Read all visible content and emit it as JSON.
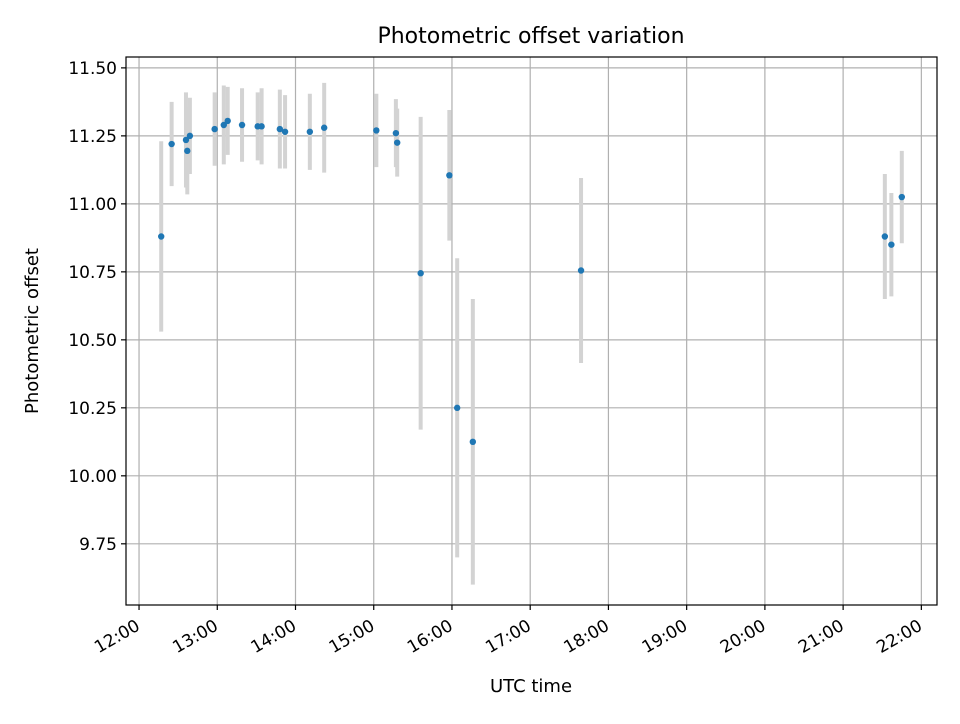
{
  "chart_data": {
    "type": "scatter",
    "title": "Photometric offset variation",
    "xlabel": "UTC time",
    "ylabel": "Photometric offset",
    "x_ticks": [
      "12:00",
      "13:00",
      "14:00",
      "15:00",
      "16:00",
      "17:00",
      "18:00",
      "19:00",
      "20:00",
      "21:00",
      "22:00"
    ],
    "y_ticks": [
      "9.75",
      "10.00",
      "10.25",
      "10.50",
      "10.75",
      "11.00",
      "11.25",
      "11.50"
    ],
    "xlim": [
      "11:50",
      "22:12"
    ],
    "ylim": [
      9.525,
      11.54
    ],
    "grid": true,
    "colors": {
      "point": "#1f77b4",
      "errorbar": "#d3d3d3",
      "grid": "#b0b0b0"
    },
    "points": [
      {
        "t": "12:17",
        "y": 10.88,
        "err": 0.35
      },
      {
        "t": "12:25",
        "y": 11.22,
        "err": 0.155
      },
      {
        "t": "12:36",
        "y": 11.235,
        "err": 0.175
      },
      {
        "t": "12:37",
        "y": 11.195,
        "err": 0.16
      },
      {
        "t": "12:39",
        "y": 11.25,
        "err": 0.14
      },
      {
        "t": "12:58",
        "y": 11.275,
        "err": 0.135
      },
      {
        "t": "13:05",
        "y": 11.29,
        "err": 0.145
      },
      {
        "t": "13:08",
        "y": 11.305,
        "err": 0.125
      },
      {
        "t": "13:19",
        "y": 11.29,
        "err": 0.135
      },
      {
        "t": "13:31",
        "y": 11.285,
        "err": 0.125
      },
      {
        "t": "13:34",
        "y": 11.285,
        "err": 0.14
      },
      {
        "t": "13:48",
        "y": 11.275,
        "err": 0.145
      },
      {
        "t": "13:52",
        "y": 11.265,
        "err": 0.135
      },
      {
        "t": "14:11",
        "y": 11.265,
        "err": 0.14
      },
      {
        "t": "14:22",
        "y": 11.28,
        "err": 0.165
      },
      {
        "t": "15:02",
        "y": 11.27,
        "err": 0.135
      },
      {
        "t": "15:17",
        "y": 11.26,
        "err": 0.125
      },
      {
        "t": "15:18",
        "y": 11.225,
        "err": 0.125
      },
      {
        "t": "15:36",
        "y": 10.745,
        "err": 0.575
      },
      {
        "t": "15:58",
        "y": 11.105,
        "err": 0.24
      },
      {
        "t": "16:04",
        "y": 10.25,
        "err": 0.55
      },
      {
        "t": "16:16",
        "y": 10.125,
        "err": 0.525
      },
      {
        "t": "17:39",
        "y": 10.755,
        "err": 0.34
      },
      {
        "t": "21:32",
        "y": 10.88,
        "err": 0.23
      },
      {
        "t": "21:37",
        "y": 10.85,
        "err": 0.19
      },
      {
        "t": "21:45",
        "y": 11.025,
        "err": 0.17
      }
    ]
  }
}
